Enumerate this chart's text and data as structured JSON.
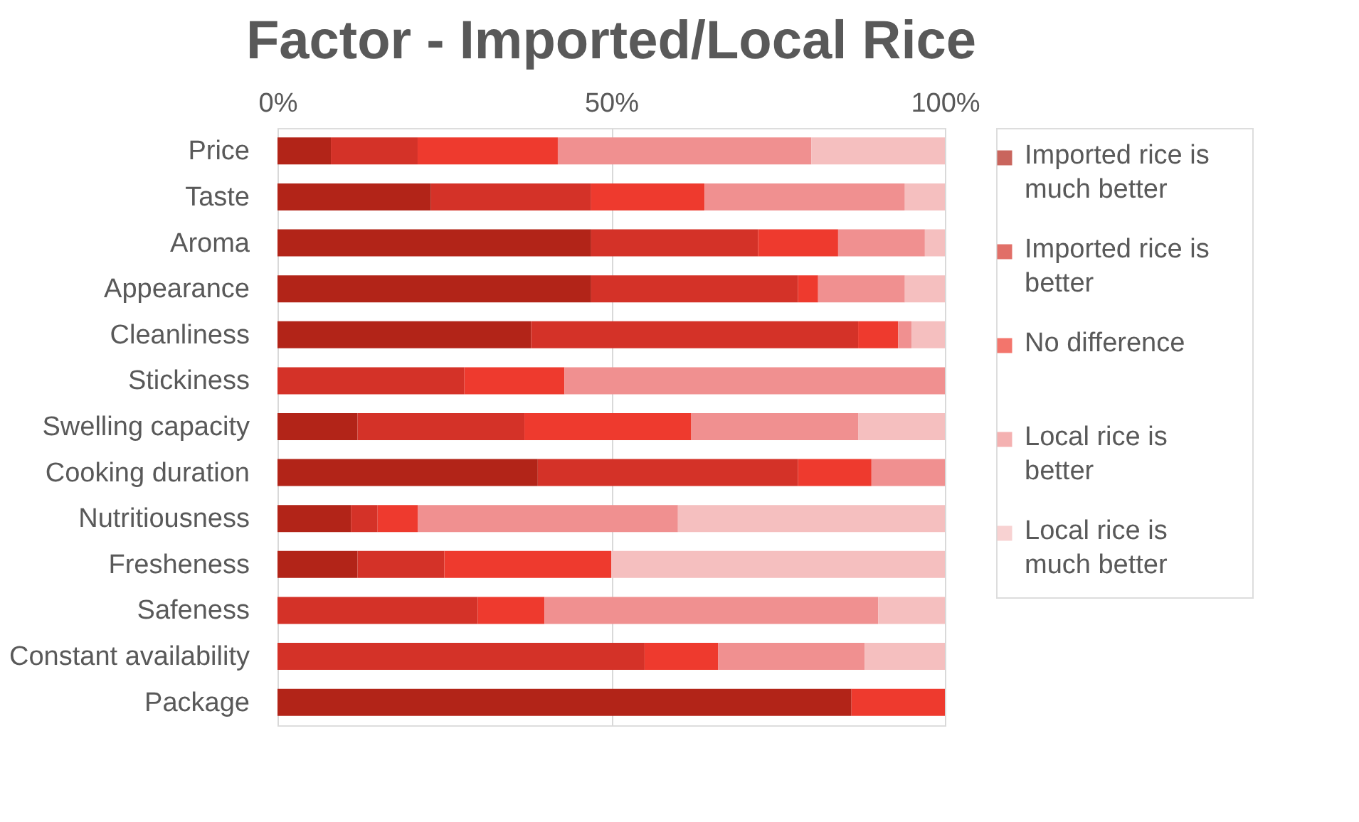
{
  "chart_data": {
    "type": "bar",
    "orientation": "horizontal",
    "stacked": true,
    "title": "Factor - Imported/Local Rice",
    "categories": [
      "Price",
      "Taste",
      "Aroma",
      "Appearance",
      "Cleanliness",
      "Stickiness",
      "Swelling capacity",
      "Cooking duration",
      "Nutritiousness",
      "Fresheness",
      "Safeness",
      "Constant availability",
      "Package"
    ],
    "series": [
      {
        "name": "Imported rice is much better",
        "color": "#b22418",
        "values": [
          8,
          23,
          47,
          47,
          38,
          0,
          12,
          39,
          11,
          12,
          0,
          0,
          86
        ]
      },
      {
        "name": "Imported rice is better",
        "color": "#d43228",
        "values": [
          13,
          24,
          25,
          31,
          49,
          28,
          25,
          39,
          4,
          13,
          30,
          55,
          0
        ]
      },
      {
        "name": "No difference",
        "color": "#ee3a2e",
        "values": [
          21,
          17,
          12,
          3,
          6,
          15,
          25,
          11,
          6,
          25,
          10,
          11,
          14
        ]
      },
      {
        "name": "Local rice is better",
        "color": "#f09090",
        "values": [
          38,
          30,
          13,
          13,
          2,
          57,
          25,
          11,
          39,
          0,
          50,
          22,
          0
        ]
      },
      {
        "name": "Local rice is much better",
        "color": "#f5bfbf",
        "values": [
          20,
          6,
          3,
          6,
          5,
          0,
          13,
          0,
          40,
          50,
          10,
          12,
          0
        ]
      }
    ],
    "xlim": [
      0,
      100
    ],
    "xticks": [
      {
        "value": 0,
        "label": "0%"
      },
      {
        "value": 50,
        "label": "50%"
      },
      {
        "value": 100,
        "label": "100%"
      }
    ],
    "grid": "x",
    "legend": "right"
  }
}
